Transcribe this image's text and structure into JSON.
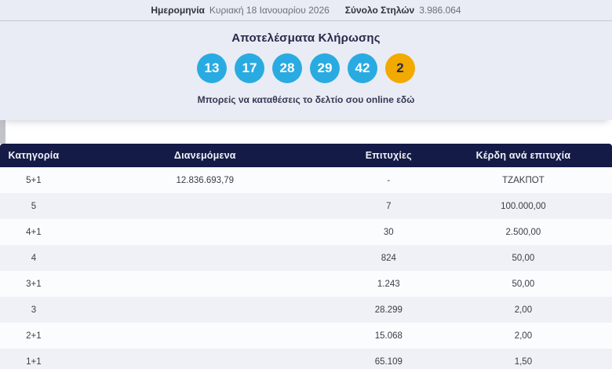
{
  "top_bar": {
    "date_label": "Ημερομηνία",
    "date_value": "Κυριακή 18 Ιανουαρίου 2026",
    "columns_label": "Σύνολο Στηλών",
    "columns_value": "3.986.064"
  },
  "results": {
    "title": "Αποτελέσματα Κλήρωσης",
    "numbers": [
      "13",
      "17",
      "28",
      "29",
      "42"
    ],
    "joker": "2",
    "deposit_link_text": "Μπορείς να καταθέσεις το δελτίο σου online εδώ"
  },
  "table": {
    "headers": [
      "Κατηγορία",
      "Διανεμόμενα",
      "Επιτυχίες",
      "Κέρδη ανά επιτυχία"
    ],
    "rows": [
      {
        "category": "5+1",
        "distributed": "12.836.693,79",
        "winners": "-",
        "prize": "ΤΖΑΚΠΟΤ"
      },
      {
        "category": "5",
        "distributed": "",
        "winners": "7",
        "prize": "100.000,00"
      },
      {
        "category": "4+1",
        "distributed": "",
        "winners": "30",
        "prize": "2.500,00"
      },
      {
        "category": "4",
        "distributed": "",
        "winners": "824",
        "prize": "50,00"
      },
      {
        "category": "3+1",
        "distributed": "",
        "winners": "1.243",
        "prize": "50,00"
      },
      {
        "category": "3",
        "distributed": "",
        "winners": "28.299",
        "prize": "2,00"
      },
      {
        "category": "2+1",
        "distributed": "",
        "winners": "15.068",
        "prize": "2,00"
      },
      {
        "category": "1+1",
        "distributed": "",
        "winners": "65.109",
        "prize": "1,50"
      }
    ]
  },
  "colors": {
    "ball_blue": "#29abe2",
    "ball_orange": "#f2a900",
    "header_navy": "#151b47",
    "panel_bg": "#e9ecf4"
  }
}
